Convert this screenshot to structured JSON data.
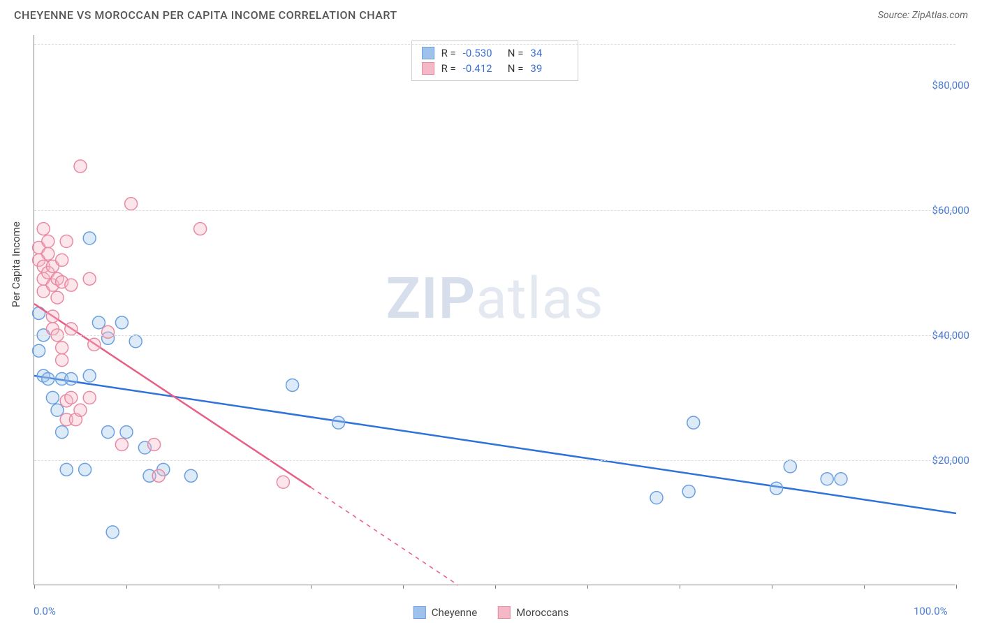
{
  "header": {
    "title": "CHEYENNE VS MOROCCAN PER CAPITA INCOME CORRELATION CHART",
    "source_prefix": "Source: ",
    "source_name": "ZipAtlas.com"
  },
  "watermark": {
    "zip": "ZIP",
    "atlas": "atlas"
  },
  "chart": {
    "type": "scatter",
    "ylabel": "Per Capita Income",
    "xlim": [
      0,
      100
    ],
    "ylim": [
      0,
      88000
    ],
    "x_tick_positions": [
      0,
      10,
      20,
      30,
      40,
      50,
      60,
      70,
      80,
      90,
      100
    ],
    "x_axis_labels": [
      {
        "pos": 0,
        "text": "0.0%"
      },
      {
        "pos": 100,
        "text": "100.0%"
      }
    ],
    "y_ticks": [
      {
        "value": 20000,
        "label": "$20,000"
      },
      {
        "value": 40000,
        "label": "$40,000"
      },
      {
        "value": 60000,
        "label": "$60,000"
      },
      {
        "value": 80000,
        "label": "$80,000"
      }
    ],
    "y_gridline_values": [
      20000,
      40000,
      60000,
      86500
    ],
    "background_color": "#ffffff",
    "grid_color": "#dddddd",
    "marker_radius": 9,
    "marker_stroke_width": 1.5,
    "marker_fill_opacity": 0.35,
    "trend_line_width": 2.5,
    "series": [
      {
        "name": "Cheyenne",
        "color_fill": "#9ec2ec",
        "color_stroke": "#6aa0e0",
        "trend_color": "#2f72d9",
        "R": "-0.530",
        "N": "34",
        "trend": {
          "x1": 0,
          "y1": 33500,
          "x2": 100,
          "y2": 11500,
          "dashed_after_x": null
        },
        "points": [
          {
            "x": 0.5,
            "y": 43500
          },
          {
            "x": 0.5,
            "y": 37500
          },
          {
            "x": 1.0,
            "y": 40000
          },
          {
            "x": 1.0,
            "y": 33500
          },
          {
            "x": 1.5,
            "y": 33000
          },
          {
            "x": 3.0,
            "y": 33000
          },
          {
            "x": 4.0,
            "y": 33000
          },
          {
            "x": 2.0,
            "y": 30000
          },
          {
            "x": 2.5,
            "y": 28000
          },
          {
            "x": 3.0,
            "y": 24500
          },
          {
            "x": 3.5,
            "y": 18500
          },
          {
            "x": 5.5,
            "y": 18500
          },
          {
            "x": 6.0,
            "y": 55500
          },
          {
            "x": 7.0,
            "y": 42000
          },
          {
            "x": 9.5,
            "y": 42000
          },
          {
            "x": 8.0,
            "y": 39500
          },
          {
            "x": 11.0,
            "y": 39000
          },
          {
            "x": 6.0,
            "y": 33500
          },
          {
            "x": 8.0,
            "y": 24500
          },
          {
            "x": 10.0,
            "y": 24500
          },
          {
            "x": 8.5,
            "y": 8500
          },
          {
            "x": 12.0,
            "y": 22000
          },
          {
            "x": 12.5,
            "y": 17500
          },
          {
            "x": 14.0,
            "y": 18500
          },
          {
            "x": 17.0,
            "y": 17500
          },
          {
            "x": 28.0,
            "y": 32000
          },
          {
            "x": 33.0,
            "y": 26000
          },
          {
            "x": 67.5,
            "y": 14000
          },
          {
            "x": 71.0,
            "y": 15000
          },
          {
            "x": 71.5,
            "y": 26000
          },
          {
            "x": 80.5,
            "y": 15500
          },
          {
            "x": 82.0,
            "y": 19000
          },
          {
            "x": 86.0,
            "y": 17000
          },
          {
            "x": 87.5,
            "y": 17000
          }
        ]
      },
      {
        "name": "Moroccans",
        "color_fill": "#f5b8c6",
        "color_stroke": "#e98aa3",
        "trend_color": "#e85f85",
        "R": "-0.412",
        "N": "39",
        "trend": {
          "x1": 0,
          "y1": 45000,
          "x2": 46,
          "y2": 0,
          "dashed_after_x": 30
        },
        "points": [
          {
            "x": 0.5,
            "y": 54000
          },
          {
            "x": 0.5,
            "y": 52000
          },
          {
            "x": 1.0,
            "y": 57000
          },
          {
            "x": 1.0,
            "y": 51000
          },
          {
            "x": 1.0,
            "y": 49000
          },
          {
            "x": 1.0,
            "y": 47000
          },
          {
            "x": 1.5,
            "y": 55000
          },
          {
            "x": 1.5,
            "y": 53000
          },
          {
            "x": 1.5,
            "y": 50000
          },
          {
            "x": 2.0,
            "y": 51000
          },
          {
            "x": 2.0,
            "y": 48000
          },
          {
            "x": 2.0,
            "y": 43000
          },
          {
            "x": 2.0,
            "y": 41000
          },
          {
            "x": 2.5,
            "y": 49000
          },
          {
            "x": 2.5,
            "y": 46000
          },
          {
            "x": 2.5,
            "y": 40000
          },
          {
            "x": 3.0,
            "y": 52000
          },
          {
            "x": 3.0,
            "y": 48500
          },
          {
            "x": 3.0,
            "y": 38000
          },
          {
            "x": 3.0,
            "y": 36000
          },
          {
            "x": 3.5,
            "y": 55000
          },
          {
            "x": 3.5,
            "y": 29500
          },
          {
            "x": 3.5,
            "y": 26500
          },
          {
            "x": 4.0,
            "y": 48000
          },
          {
            "x": 4.0,
            "y": 41000
          },
          {
            "x": 4.0,
            "y": 30000
          },
          {
            "x": 4.5,
            "y": 26500
          },
          {
            "x": 5.0,
            "y": 67000
          },
          {
            "x": 5.0,
            "y": 28000
          },
          {
            "x": 6.0,
            "y": 49000
          },
          {
            "x": 6.0,
            "y": 30000
          },
          {
            "x": 6.5,
            "y": 38500
          },
          {
            "x": 8.0,
            "y": 40500
          },
          {
            "x": 9.5,
            "y": 22500
          },
          {
            "x": 10.5,
            "y": 61000
          },
          {
            "x": 13.0,
            "y": 22500
          },
          {
            "x": 13.5,
            "y": 17500
          },
          {
            "x": 18.0,
            "y": 57000
          },
          {
            "x": 27.0,
            "y": 16500
          }
        ]
      }
    ]
  },
  "legend_top": {
    "R_label": "R =",
    "N_label": "N ="
  },
  "legend_bottom": {
    "items": [
      "Cheyenne",
      "Moroccans"
    ]
  }
}
